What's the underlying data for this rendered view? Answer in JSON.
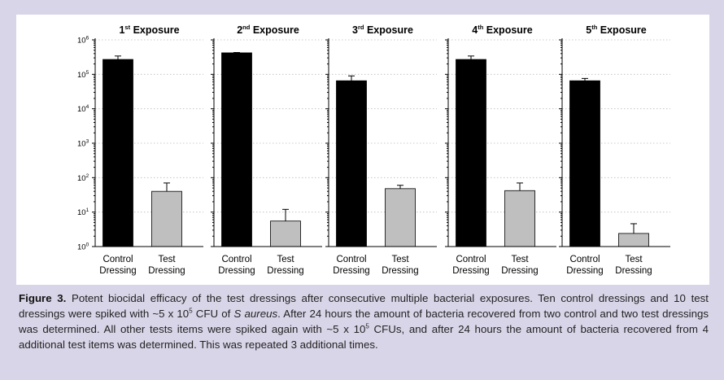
{
  "chart_data": {
    "type": "bar",
    "y_scale": "log",
    "ylim": [
      1,
      1000000
    ],
    "y_tick_values": [
      1,
      10,
      100,
      1000,
      10000,
      100000,
      1000000
    ],
    "y_tick_labels": [
      {
        "base": "10",
        "exp": "0"
      },
      {
        "base": "10",
        "exp": "1"
      },
      {
        "base": "10",
        "exp": "2"
      },
      {
        "base": "10",
        "exp": "3"
      },
      {
        "base": "10",
        "exp": "4"
      },
      {
        "base": "10",
        "exp": "5"
      },
      {
        "base": "10",
        "exp": "6"
      }
    ],
    "grid": "dotted horizontal",
    "colors": {
      "control": "#000000",
      "test": "#bfbfbf"
    },
    "categories": [
      {
        "line1": "Control",
        "line2": "Dressing"
      },
      {
        "line1": "Test",
        "line2": "Dressing"
      }
    ],
    "panels": [
      {
        "title_num": "1",
        "title_sup": "st",
        "title_rest": " Exposure",
        "values": [
          270000,
          40
        ],
        "error_upper": [
          340000,
          70
        ]
      },
      {
        "title_num": "2",
        "title_sup": "nd",
        "title_rest": " Exposure",
        "values": [
          420000,
          5.5
        ],
        "error_upper": [
          430000,
          12
        ]
      },
      {
        "title_num": "3",
        "title_sup": "rd",
        "title_rest": " Exposure",
        "values": [
          65000,
          48
        ],
        "error_upper": [
          90000,
          60
        ]
      },
      {
        "title_num": "4",
        "title_sup": "th",
        "title_rest": " Exposure",
        "values": [
          270000,
          42
        ],
        "error_upper": [
          340000,
          70
        ]
      },
      {
        "title_num": "5",
        "title_sup": "th",
        "title_rest": " Exposure",
        "values": [
          65000,
          2.4
        ],
        "error_upper": [
          76000,
          4.6
        ]
      }
    ]
  },
  "caption": {
    "figure_label": "Figure 3.",
    "s1": " Potent biocidal efficacy of the test dressings after consecutive multiple bacterial exposures. Ten control dressings and 10 test dressings were spiked with ~5 x 10",
    "sup1": "5",
    "s2": " CFU of ",
    "organism": "S aureus",
    "s3": ". After 24 hours the amount of bacteria recovered from two control and two test dressings was determined. All other tests items were spiked again with ~5 x 10",
    "sup2": "5",
    "s4": " CFUs, and after 24 hours the amount of bacteria recovered from 4 additional test items was determined. This was repeated 3 additional times."
  }
}
